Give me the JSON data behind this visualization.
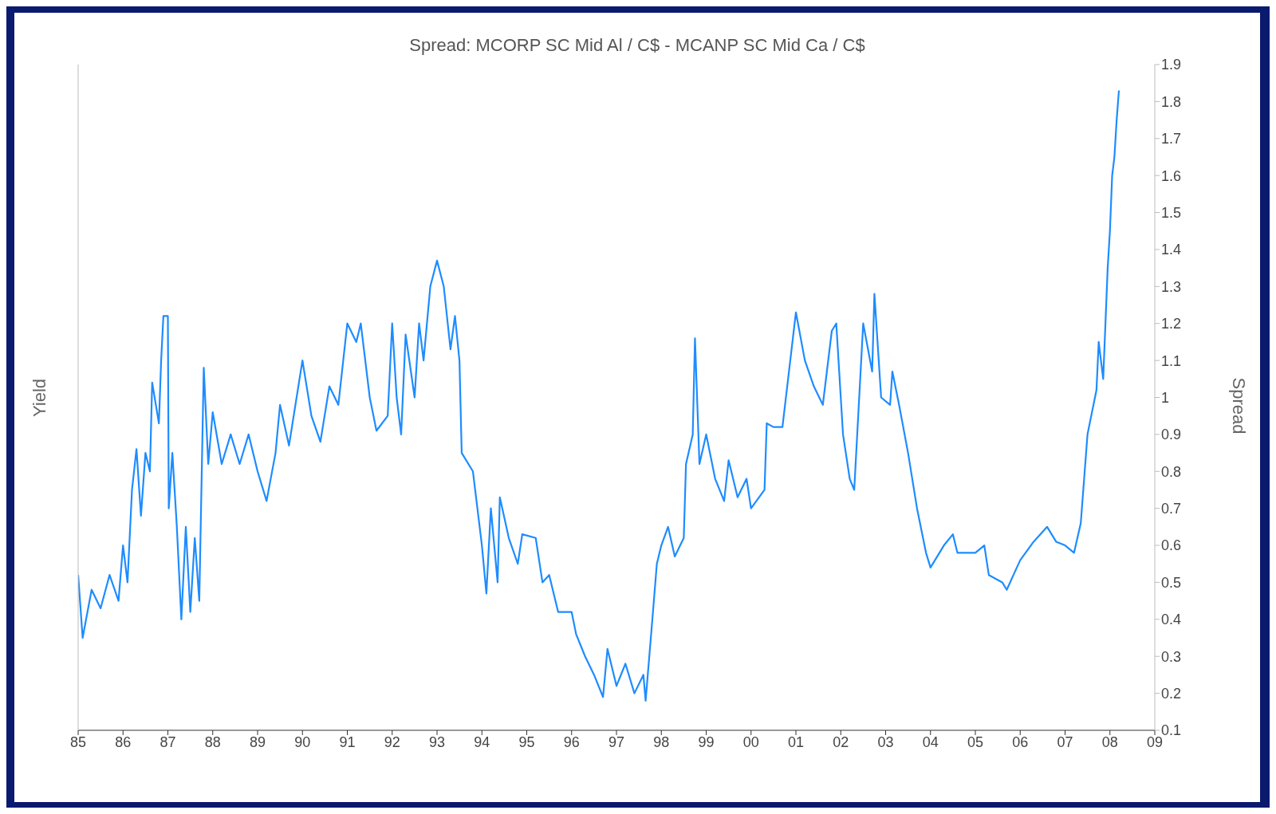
{
  "chart_data": {
    "type": "line",
    "title": "Spread: MCORP SC Mid Al / C$  -  MCANP SC Mid Ca / C$",
    "ylabel": "Yield",
    "y2label": "Spread",
    "marker": "none",
    "x": [
      1985.0,
      1985.1,
      1985.3,
      1985.5,
      1985.7,
      1985.9,
      1986.0,
      1986.1,
      1986.2,
      1986.3,
      1986.4,
      1986.5,
      1986.6,
      1986.65,
      1986.8,
      1986.85,
      1986.9,
      1987.0,
      1987.02,
      1987.1,
      1987.2,
      1987.3,
      1987.4,
      1987.5,
      1987.6,
      1987.7,
      1987.8,
      1987.9,
      1988.0,
      1988.2,
      1988.4,
      1988.6,
      1988.8,
      1989.0,
      1989.2,
      1989.4,
      1989.5,
      1989.7,
      1990.0,
      1990.2,
      1990.4,
      1990.6,
      1990.8,
      1991.0,
      1991.2,
      1991.3,
      1991.5,
      1991.65,
      1991.9,
      1992.0,
      1992.1,
      1992.2,
      1992.3,
      1992.5,
      1992.6,
      1992.7,
      1992.85,
      1993.0,
      1993.15,
      1993.3,
      1993.4,
      1993.5,
      1993.55,
      1993.8,
      1993.9,
      1994.0,
      1994.1,
      1994.2,
      1994.35,
      1994.4,
      1994.6,
      1994.8,
      1994.9,
      1995.2,
      1995.35,
      1995.5,
      1995.7,
      1996.0,
      1996.1,
      1996.3,
      1996.5,
      1996.7,
      1996.8,
      1997.0,
      1997.2,
      1997.4,
      1997.6,
      1997.65,
      1997.8,
      1997.9,
      1998.0,
      1998.15,
      1998.3,
      1998.5,
      1998.55,
      1998.7,
      1998.75,
      1998.85,
      1999.0,
      1999.2,
      1999.4,
      1999.5,
      1999.7,
      1999.9,
      2000.0,
      2000.3,
      2000.35,
      2000.5,
      2000.7,
      2001.0,
      2001.2,
      2001.4,
      2001.6,
      2001.8,
      2001.9,
      2002.05,
      2002.2,
      2002.3,
      2002.5,
      2002.7,
      2002.75,
      2002.9,
      2003.1,
      2003.15,
      2003.3,
      2003.5,
      2003.7,
      2003.9,
      2004.0,
      2004.3,
      2004.5,
      2004.6,
      2005.0,
      2005.2,
      2005.3,
      2005.6,
      2005.7,
      2006.0,
      2006.3,
      2006.6,
      2006.8,
      2007.0,
      2007.2,
      2007.35,
      2007.5,
      2007.7,
      2007.75,
      2007.85,
      2007.95,
      2008.0,
      2008.05,
      2008.1,
      2008.15,
      2008.2
    ],
    "series": [
      {
        "color": "#1e8cff",
        "axis": "y2",
        "values": [
          0.52,
          0.35,
          0.48,
          0.43,
          0.52,
          0.45,
          0.6,
          0.5,
          0.75,
          0.86,
          0.68,
          0.85,
          0.8,
          1.04,
          0.93,
          1.1,
          1.22,
          1.22,
          0.7,
          0.85,
          0.65,
          0.4,
          0.65,
          0.42,
          0.62,
          0.45,
          1.08,
          0.82,
          0.96,
          0.82,
          0.9,
          0.82,
          0.9,
          0.8,
          0.72,
          0.85,
          0.98,
          0.87,
          1.1,
          0.95,
          0.88,
          1.03,
          0.98,
          1.2,
          1.15,
          1.2,
          1.0,
          0.91,
          0.95,
          1.2,
          1.0,
          0.9,
          1.17,
          1.0,
          1.2,
          1.1,
          1.3,
          1.37,
          1.3,
          1.13,
          1.22,
          1.1,
          0.85,
          0.8,
          0.7,
          0.6,
          0.47,
          0.7,
          0.5,
          0.73,
          0.62,
          0.55,
          0.63,
          0.62,
          0.5,
          0.52,
          0.42,
          0.42,
          0.36,
          0.3,
          0.25,
          0.19,
          0.32,
          0.22,
          0.28,
          0.2,
          0.25,
          0.18,
          0.4,
          0.55,
          0.6,
          0.65,
          0.57,
          0.62,
          0.82,
          0.9,
          1.16,
          0.82,
          0.9,
          0.78,
          0.72,
          0.83,
          0.73,
          0.78,
          0.7,
          0.75,
          0.93,
          0.92,
          0.92,
          1.23,
          1.1,
          1.03,
          0.98,
          1.18,
          1.2,
          0.9,
          0.78,
          0.75,
          1.2,
          1.07,
          1.28,
          1.0,
          0.98,
          1.07,
          0.98,
          0.85,
          0.7,
          0.58,
          0.54,
          0.6,
          0.63,
          0.58,
          0.58,
          0.6,
          0.52,
          0.5,
          0.48,
          0.56,
          0.61,
          0.65,
          0.61,
          0.6,
          0.58,
          0.66,
          0.9,
          1.02,
          1.15,
          1.05,
          1.35,
          1.45,
          1.6,
          1.65,
          1.75,
          1.83
        ]
      }
    ],
    "xlim": [
      1985,
      2009
    ],
    "xticks": [
      {
        "value": 1985,
        "label": "85"
      },
      {
        "value": 1986,
        "label": "86"
      },
      {
        "value": 1987,
        "label": "87"
      },
      {
        "value": 1988,
        "label": "88"
      },
      {
        "value": 1989,
        "label": "89"
      },
      {
        "value": 1990,
        "label": "90"
      },
      {
        "value": 1991,
        "label": "91"
      },
      {
        "value": 1992,
        "label": "92"
      },
      {
        "value": 1993,
        "label": "93"
      },
      {
        "value": 1994,
        "label": "94"
      },
      {
        "value": 1995,
        "label": "95"
      },
      {
        "value": 1996,
        "label": "96"
      },
      {
        "value": 1997,
        "label": "97"
      },
      {
        "value": 1998,
        "label": "98"
      },
      {
        "value": 1999,
        "label": "99"
      },
      {
        "value": 2000,
        "label": "00"
      },
      {
        "value": 2001,
        "label": "01"
      },
      {
        "value": 2002,
        "label": "02"
      },
      {
        "value": 2003,
        "label": "03"
      },
      {
        "value": 2004,
        "label": "04"
      },
      {
        "value": 2005,
        "label": "05"
      },
      {
        "value": 2006,
        "label": "06"
      },
      {
        "value": 2007,
        "label": "07"
      },
      {
        "value": 2008,
        "label": "08"
      },
      {
        "value": 2009,
        "label": "09"
      }
    ],
    "y2lim": [
      0.1,
      1.9
    ],
    "y2ticks": [
      0.1,
      0.2,
      0.3,
      0.4,
      0.5,
      0.6,
      0.7,
      0.8,
      0.9,
      1.0,
      1.1,
      1.2,
      1.3,
      1.4,
      1.5,
      1.6,
      1.7,
      1.8,
      1.9
    ]
  }
}
